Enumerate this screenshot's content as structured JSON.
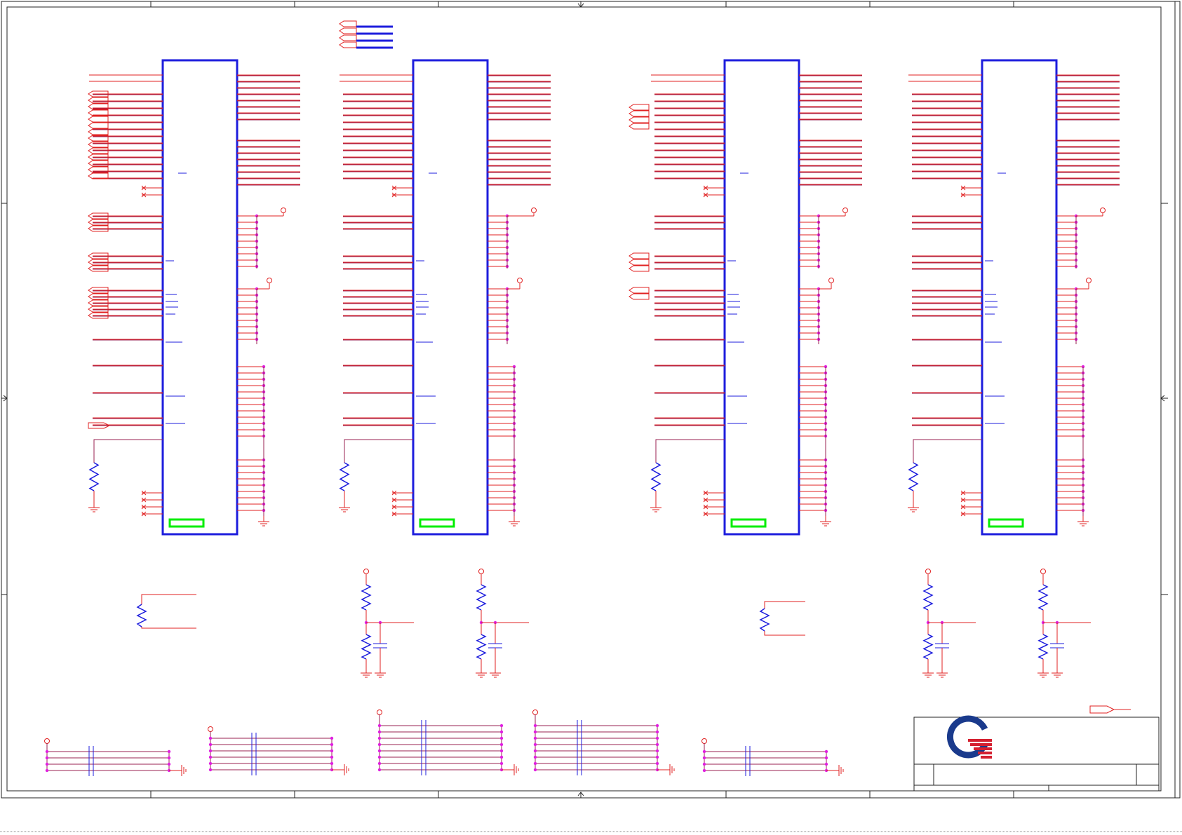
{
  "sheet": {
    "title": "",
    "colors": {
      "wire": "#e02020",
      "net": "#9a2050",
      "component": "#1d1ddd",
      "junction": "#e020e0",
      "footprint": "#00ee00",
      "frame": "#222222"
    },
    "chips": [
      {
        "label": ""
      },
      {
        "label": ""
      },
      {
        "label": ""
      },
      {
        "label": ""
      }
    ],
    "title_block": {
      "logo_icon": "company-logo-icon",
      "logo_colors": [
        "#1a3a8c",
        "#d42030"
      ]
    }
  }
}
